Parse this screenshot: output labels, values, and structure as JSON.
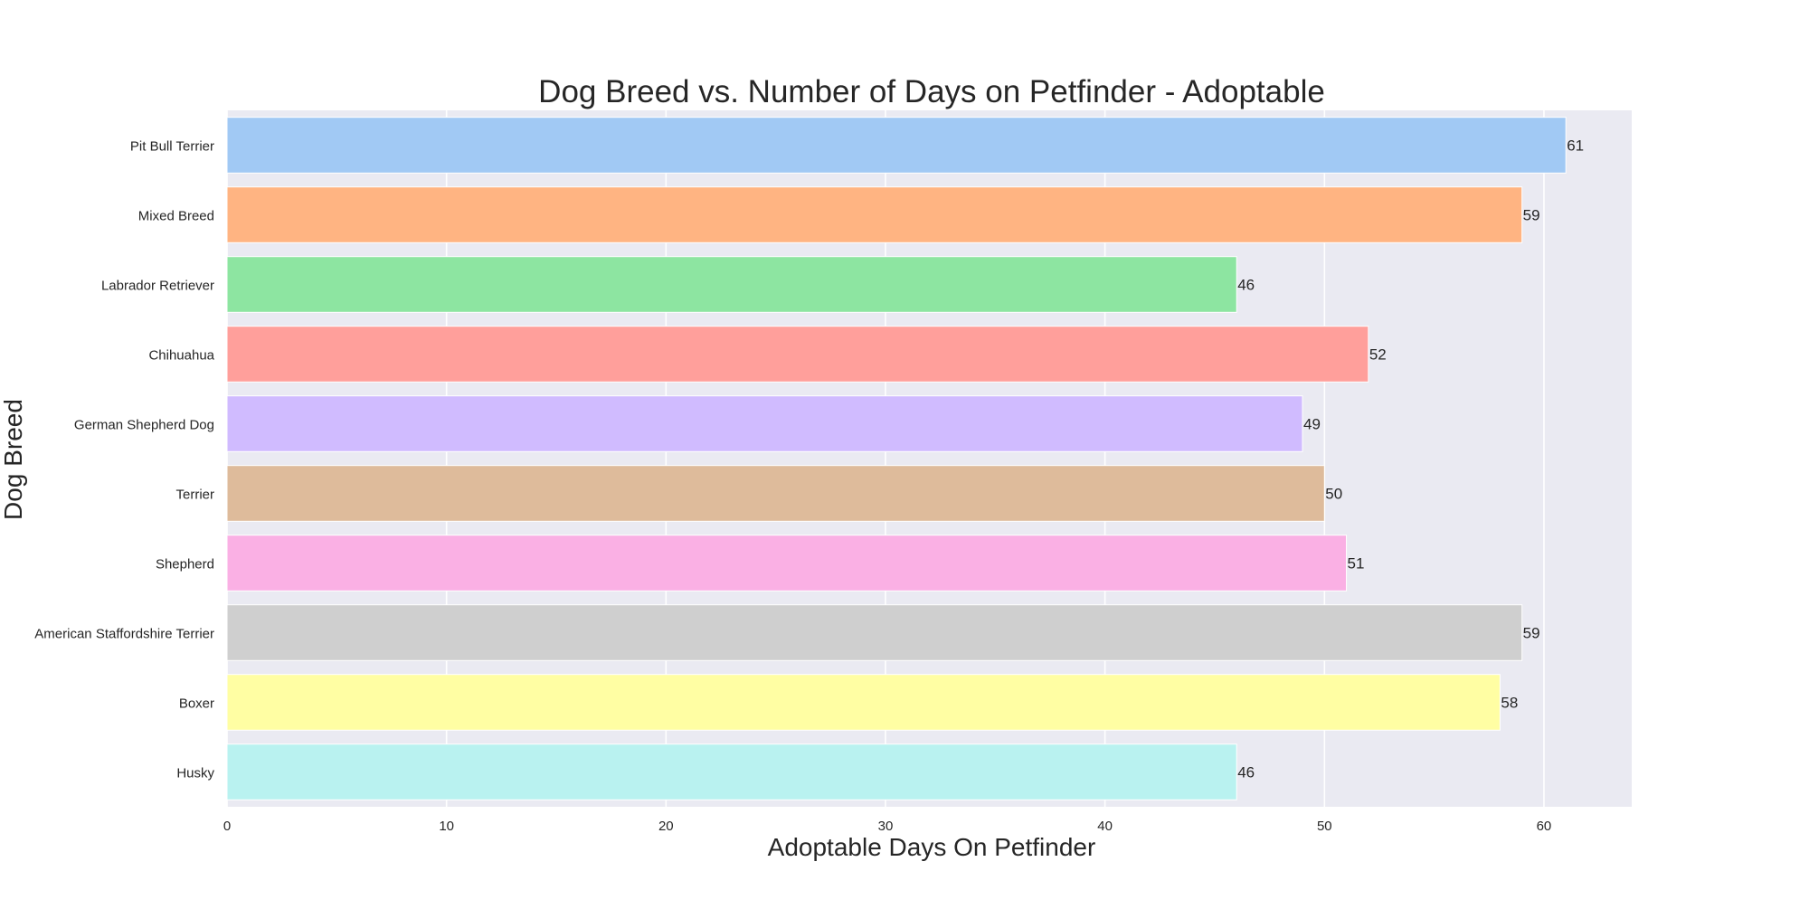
{
  "chart_data": {
    "type": "bar",
    "orientation": "horizontal",
    "title": "Dog Breed vs. Number of Days on Petfinder - Adoptable",
    "xlabel": "Adoptable Days On Petfinder",
    "ylabel": "Dog Breed",
    "xlim": [
      0,
      64
    ],
    "xticks": [
      0,
      10,
      20,
      30,
      40,
      50,
      60
    ],
    "grid": true,
    "legend": "none",
    "categories": [
      "Pit Bull Terrier",
      "Mixed Breed",
      "Labrador Retriever",
      "Chihuahua",
      "German Shepherd Dog",
      "Terrier",
      "Shepherd",
      "American Staffordshire Terrier",
      "Boxer",
      "Husky"
    ],
    "values": [
      61,
      59,
      46,
      52,
      49,
      50,
      51,
      59,
      58,
      46
    ],
    "colors": [
      "#a1c9f4",
      "#ffb482",
      "#8de5a1",
      "#ff9f9b",
      "#d0bbff",
      "#debb9b",
      "#fab0e4",
      "#cfcfcf",
      "#fffea3",
      "#b9f2f0"
    ],
    "plot_background": "#eaeaf2",
    "grid_color": "#ffffff"
  }
}
